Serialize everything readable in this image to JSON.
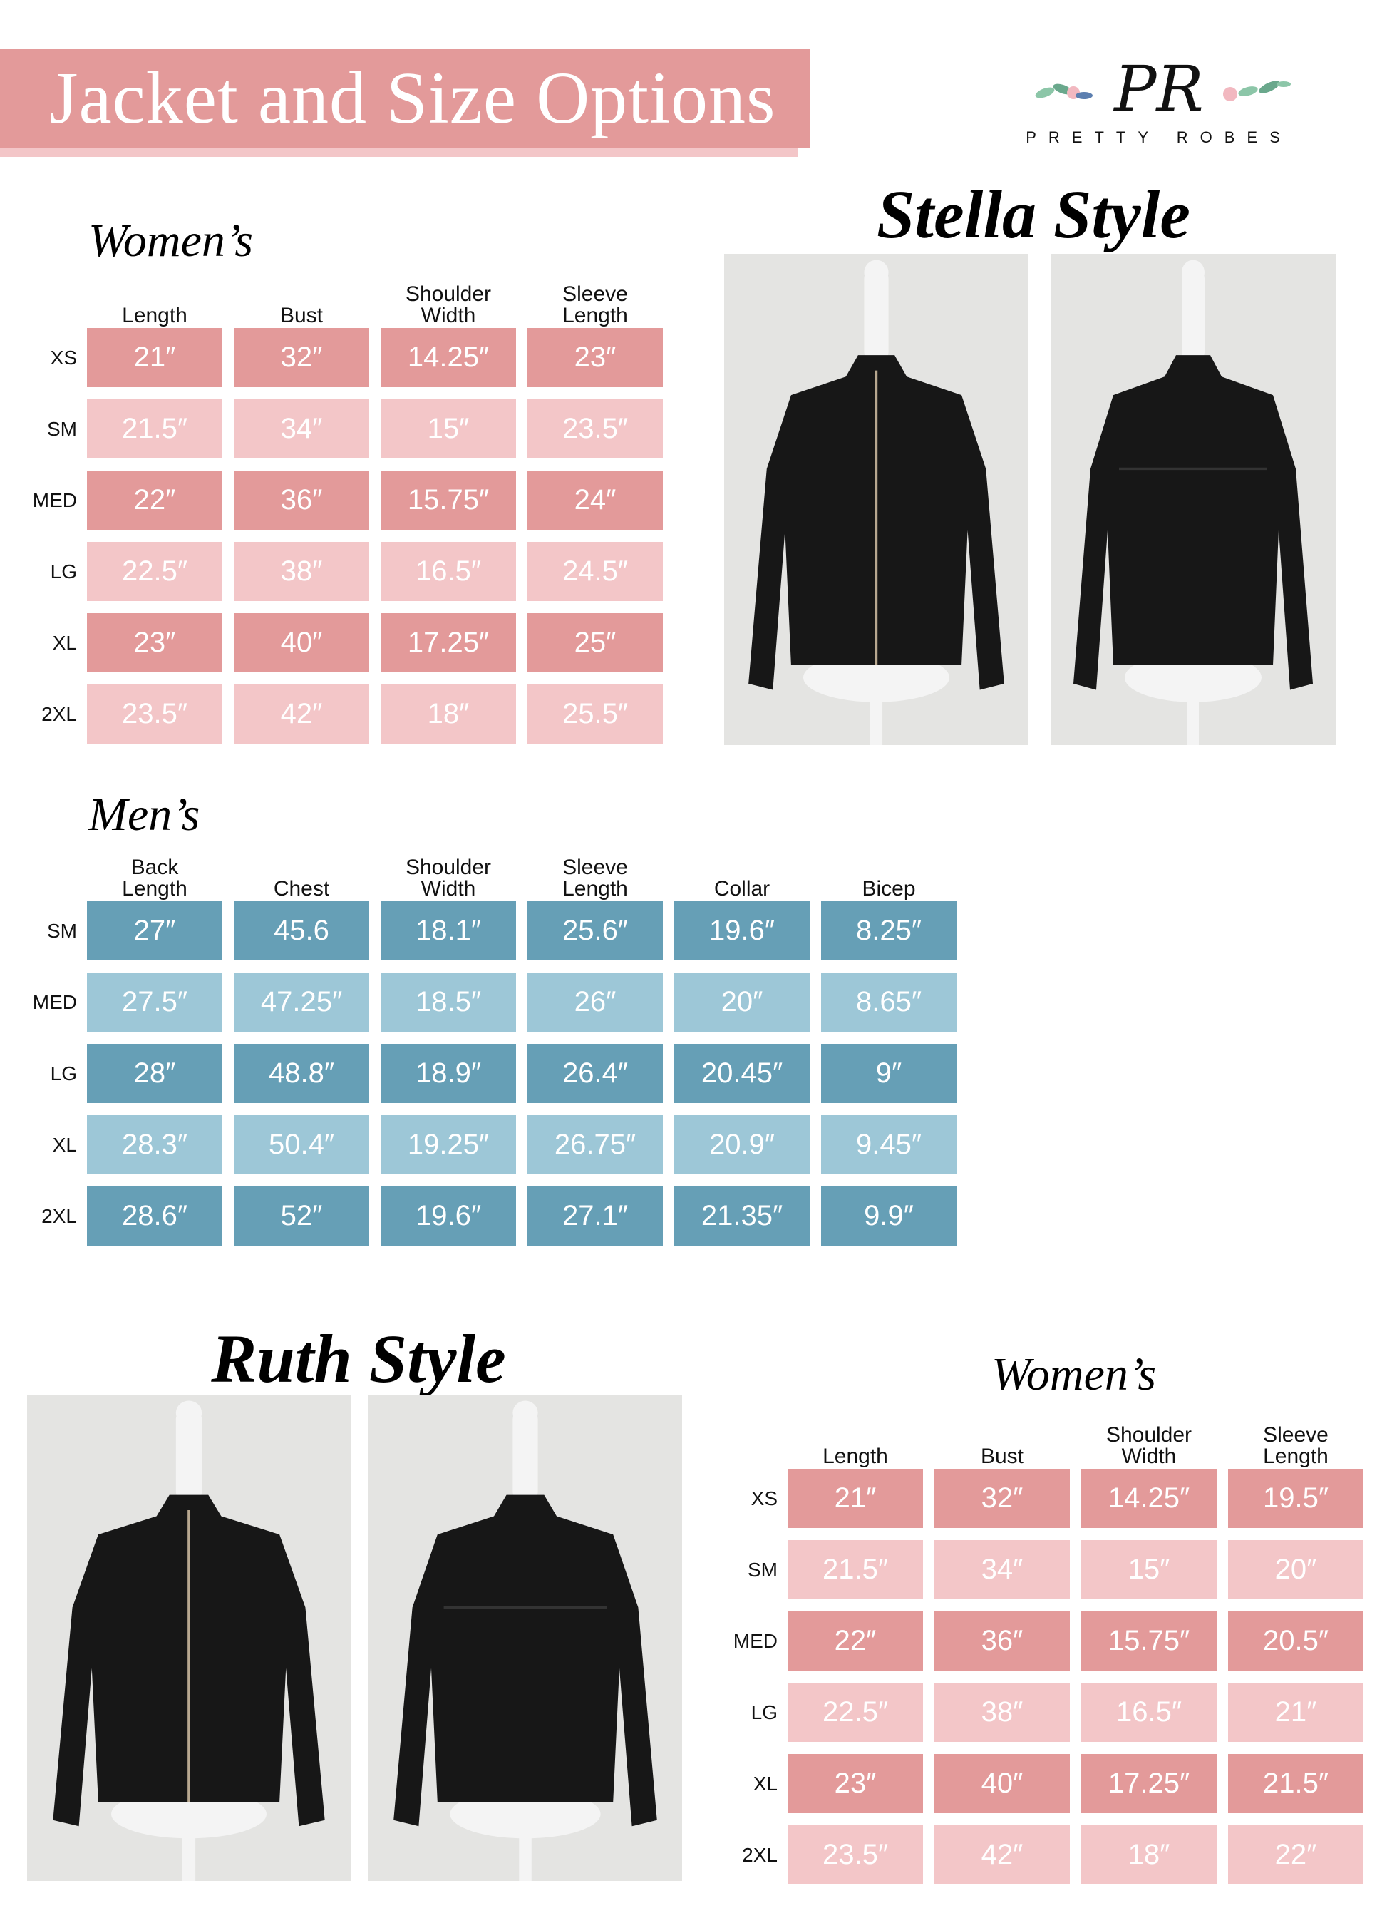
{
  "header": {
    "title": "Jacket and Size Options"
  },
  "logo": {
    "mark": "PR",
    "text": "PRETTY ROBES"
  },
  "colors": {
    "pink_dark": "#e39a9a",
    "pink_light": "#f3c6c8",
    "blue_dark": "#669fb6",
    "blue_light": "#9dc7d7"
  },
  "stella": {
    "title": "Stella Style",
    "photos": [
      "jacket-front-photo",
      "jacket-back-photo"
    ],
    "womens": {
      "label": "Women’s",
      "columns": [
        "Length",
        "Bust",
        "Shoulder\nWidth",
        "Sleeve\nLength"
      ],
      "rows": [
        {
          "size": "XS",
          "values": [
            "21″",
            "32″",
            "14.25″",
            "23″"
          ]
        },
        {
          "size": "SM",
          "values": [
            "21.5″",
            "34″",
            "15″",
            "23.5″"
          ]
        },
        {
          "size": "MED",
          "values": [
            "22″",
            "36″",
            "15.75″",
            "24″"
          ]
        },
        {
          "size": "LG",
          "values": [
            "22.5″",
            "38″",
            "16.5″",
            "24.5″"
          ]
        },
        {
          "size": "XL",
          "values": [
            "23″",
            "40″",
            "17.25″",
            "25″"
          ]
        },
        {
          "size": "2XL",
          "values": [
            "23.5″",
            "42″",
            "18″",
            "25.5″"
          ]
        }
      ]
    }
  },
  "mens": {
    "label": "Men’s",
    "columns": [
      "Back\nLength",
      "Chest",
      "Shoulder\nWidth",
      "Sleeve\nLength",
      "Collar",
      "Bicep"
    ],
    "rows": [
      {
        "size": "SM",
        "values": [
          "27″",
          "45.6",
          "18.1″",
          "25.6″",
          "19.6″",
          "8.25″"
        ]
      },
      {
        "size": "MED",
        "values": [
          "27.5″",
          "47.25″",
          "18.5″",
          "26″",
          "20″",
          "8.65″"
        ]
      },
      {
        "size": "LG",
        "values": [
          "28″",
          "48.8″",
          "18.9″",
          "26.4″",
          "20.45″",
          "9″"
        ]
      },
      {
        "size": "XL",
        "values": [
          "28.3″",
          "50.4″",
          "19.25″",
          "26.75″",
          "20.9″",
          "9.45″"
        ]
      },
      {
        "size": "2XL",
        "values": [
          "28.6″",
          "52″",
          "19.6″",
          "27.1″",
          "21.35″",
          "9.9″"
        ]
      }
    ]
  },
  "ruth": {
    "title": "Ruth Style",
    "photos": [
      "jacket-front-photo",
      "jacket-back-photo"
    ],
    "womens": {
      "label": "Women’s",
      "columns": [
        "Length",
        "Bust",
        "Shoulder\nWidth",
        "Sleeve\nLength"
      ],
      "rows": [
        {
          "size": "XS",
          "values": [
            "21″",
            "32″",
            "14.25″",
            "19.5″"
          ]
        },
        {
          "size": "SM",
          "values": [
            "21.5″",
            "34″",
            "15″",
            "20″"
          ]
        },
        {
          "size": "MED",
          "values": [
            "22″",
            "36″",
            "15.75″",
            "20.5″"
          ]
        },
        {
          "size": "LG",
          "values": [
            "22.5″",
            "38″",
            "16.5″",
            "21″"
          ]
        },
        {
          "size": "XL",
          "values": [
            "23″",
            "40″",
            "17.25″",
            "21.5″"
          ]
        },
        {
          "size": "2XL",
          "values": [
            "23.5″",
            "42″",
            "18″",
            "22″"
          ]
        }
      ]
    }
  }
}
